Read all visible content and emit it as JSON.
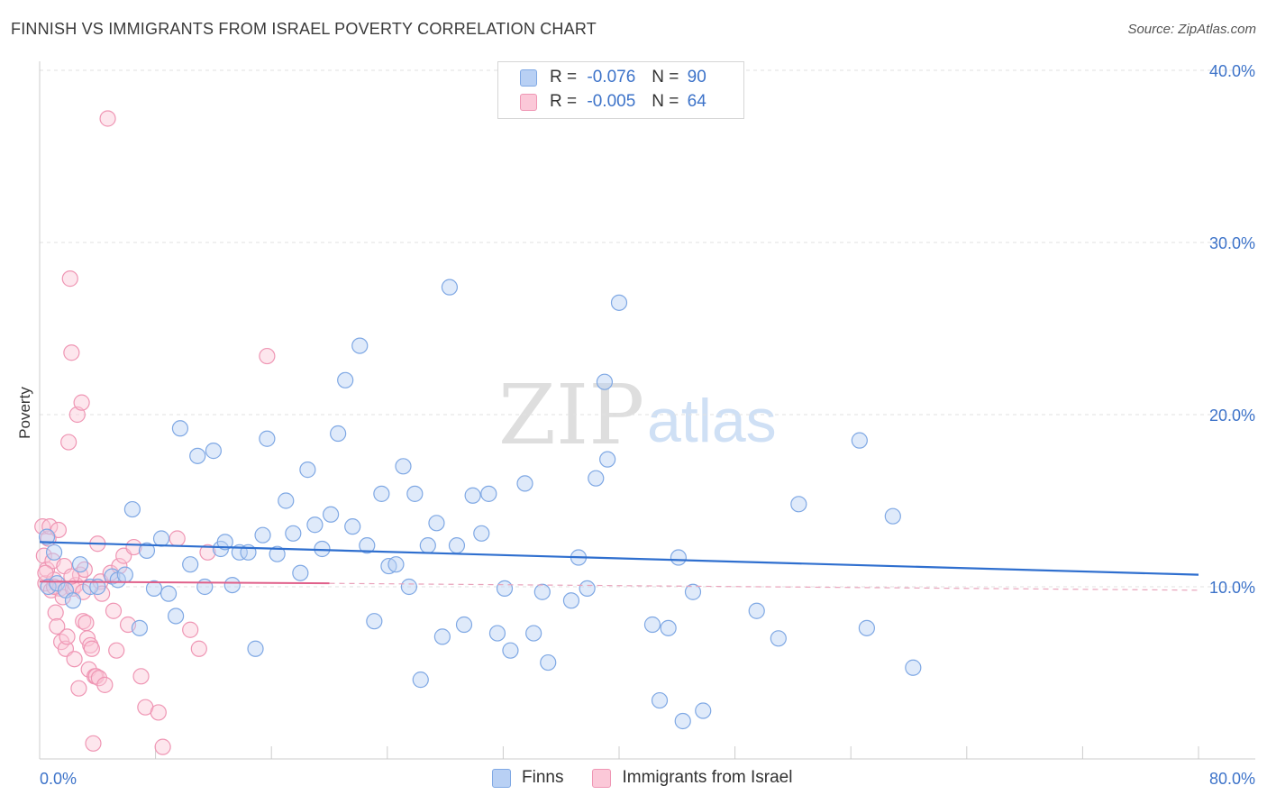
{
  "header": {
    "title": "FINNISH VS IMMIGRANTS FROM ISRAEL POVERTY CORRELATION CHART",
    "source": "Source: ZipAtlas.com"
  },
  "watermark": {
    "zip": "ZIP",
    "atlas": "atlas"
  },
  "legend_top": {
    "finns": {
      "r_label": "R =",
      "r_value": "-0.076",
      "n_label": "N =",
      "n_value": "90"
    },
    "israel": {
      "r_label": "R =",
      "r_value": "-0.005",
      "n_label": "N =",
      "n_value": "64"
    }
  },
  "legend_bottom": {
    "finns": "Finns",
    "israel": "Immigrants from Israel"
  },
  "colors": {
    "finns": "#7fa8e4",
    "finns_line": "#2f6fcf",
    "israel": "#ef96b4",
    "israel_line": "#e0608a",
    "tick_label": "#3d73c9"
  },
  "chart_data": {
    "type": "scatter",
    "title": "FINNISH VS IMMIGRANTS FROM ISRAEL POVERTY CORRELATION CHART",
    "xlabel": "",
    "ylabel": "Poverty",
    "xlim": [
      0,
      80
    ],
    "ylim": [
      0,
      40
    ],
    "x_tick_labels": [
      "0.0%",
      "80.0%"
    ],
    "y_ticks": [
      10,
      20,
      30,
      40
    ],
    "y_tick_labels": [
      "10.0%",
      "20.0%",
      "30.0%",
      "40.0%"
    ],
    "grid": "horizontal dashed",
    "legend": "top-center",
    "series": [
      {
        "name": "Finns",
        "color": "#7fa8e4",
        "trend": {
          "x": [
            0,
            80
          ],
          "y": [
            12.6,
            10.7
          ]
        },
        "points": [
          [
            0.5,
            12.9
          ],
          [
            0.6,
            10.0
          ],
          [
            1.0,
            12.0
          ],
          [
            1.2,
            10.2
          ],
          [
            1.8,
            9.8
          ],
          [
            2.3,
            9.2
          ],
          [
            2.8,
            11.3
          ],
          [
            3.5,
            10.0
          ],
          [
            4.0,
            10.0
          ],
          [
            5.0,
            10.6
          ],
          [
            5.4,
            10.4
          ],
          [
            5.9,
            10.7
          ],
          [
            6.4,
            14.5
          ],
          [
            6.9,
            7.6
          ],
          [
            7.4,
            12.1
          ],
          [
            7.9,
            9.9
          ],
          [
            8.4,
            12.8
          ],
          [
            8.9,
            9.6
          ],
          [
            9.4,
            8.3
          ],
          [
            9.7,
            19.2
          ],
          [
            10.4,
            11.3
          ],
          [
            10.9,
            17.6
          ],
          [
            11.4,
            10.0
          ],
          [
            12.0,
            17.9
          ],
          [
            12.5,
            12.2
          ],
          [
            12.8,
            12.6
          ],
          [
            13.3,
            10.1
          ],
          [
            13.8,
            12.0
          ],
          [
            14.4,
            12.0
          ],
          [
            14.9,
            6.4
          ],
          [
            15.4,
            13.0
          ],
          [
            15.7,
            18.6
          ],
          [
            16.4,
            11.9
          ],
          [
            17.0,
            15.0
          ],
          [
            17.5,
            13.1
          ],
          [
            18.0,
            10.8
          ],
          [
            18.5,
            16.8
          ],
          [
            19.0,
            13.6
          ],
          [
            19.5,
            12.2
          ],
          [
            20.1,
            14.2
          ],
          [
            20.6,
            18.9
          ],
          [
            21.1,
            22.0
          ],
          [
            21.6,
            13.5
          ],
          [
            22.1,
            24.0
          ],
          [
            22.6,
            12.4
          ],
          [
            23.1,
            8.0
          ],
          [
            23.6,
            15.4
          ],
          [
            24.1,
            11.2
          ],
          [
            24.6,
            11.3
          ],
          [
            25.1,
            17.0
          ],
          [
            25.5,
            10.0
          ],
          [
            25.9,
            15.4
          ],
          [
            26.3,
            4.6
          ],
          [
            26.8,
            12.4
          ],
          [
            27.4,
            13.7
          ],
          [
            27.8,
            7.1
          ],
          [
            28.3,
            27.4
          ],
          [
            28.8,
            12.4
          ],
          [
            29.3,
            7.8
          ],
          [
            29.9,
            15.3
          ],
          [
            30.5,
            13.1
          ],
          [
            31.0,
            15.4
          ],
          [
            31.6,
            7.3
          ],
          [
            32.1,
            9.9
          ],
          [
            32.5,
            6.3
          ],
          [
            33.5,
            16.0
          ],
          [
            34.1,
            7.3
          ],
          [
            34.7,
            9.7
          ],
          [
            35.1,
            5.6
          ],
          [
            36.7,
            9.2
          ],
          [
            37.2,
            11.7
          ],
          [
            37.8,
            9.9
          ],
          [
            38.4,
            16.3
          ],
          [
            39.0,
            21.9
          ],
          [
            39.2,
            17.4
          ],
          [
            40.0,
            26.5
          ],
          [
            42.3,
            7.8
          ],
          [
            42.8,
            3.4
          ],
          [
            43.4,
            7.6
          ],
          [
            44.1,
            11.7
          ],
          [
            44.4,
            2.2
          ],
          [
            45.1,
            9.7
          ],
          [
            45.8,
            2.8
          ],
          [
            49.5,
            8.6
          ],
          [
            51.0,
            7.0
          ],
          [
            52.4,
            14.8
          ],
          [
            56.6,
            18.5
          ],
          [
            57.1,
            7.6
          ],
          [
            58.9,
            14.1
          ],
          [
            60.3,
            5.3
          ]
        ]
      },
      {
        "name": "Immigrants from Israel",
        "color": "#ef96b4",
        "trend": {
          "x": [
            0,
            20
          ],
          "y": [
            10.3,
            10.2
          ]
        },
        "trend_extension": {
          "x": [
            20,
            80
          ],
          "y": [
            10.2,
            9.8
          ]
        },
        "points": [
          [
            0.2,
            13.5
          ],
          [
            0.3,
            11.8
          ],
          [
            0.4,
            10.2
          ],
          [
            0.5,
            11.0
          ],
          [
            0.6,
            12.8
          ],
          [
            0.7,
            13.5
          ],
          [
            0.8,
            9.8
          ],
          [
            0.9,
            11.5
          ],
          [
            1.0,
            10.4
          ],
          [
            1.1,
            8.5
          ],
          [
            1.2,
            7.7
          ],
          [
            1.3,
            13.3
          ],
          [
            1.4,
            9.9
          ],
          [
            1.5,
            6.8
          ],
          [
            1.6,
            9.4
          ],
          [
            1.7,
            11.2
          ],
          [
            1.8,
            6.4
          ],
          [
            1.9,
            7.1
          ],
          [
            2.0,
            18.4
          ],
          [
            2.1,
            27.9
          ],
          [
            2.2,
            23.6
          ],
          [
            2.3,
            9.9
          ],
          [
            2.4,
            5.8
          ],
          [
            2.5,
            10.1
          ],
          [
            2.6,
            20.0
          ],
          [
            2.7,
            4.1
          ],
          [
            2.8,
            10.7
          ],
          [
            2.9,
            20.7
          ],
          [
            3.0,
            8.0
          ],
          [
            3.1,
            11.0
          ],
          [
            3.2,
            7.9
          ],
          [
            3.3,
            7.0
          ],
          [
            3.4,
            5.2
          ],
          [
            3.5,
            6.6
          ],
          [
            3.6,
            6.4
          ],
          [
            3.7,
            0.9
          ],
          [
            3.8,
            4.8
          ],
          [
            3.9,
            4.8
          ],
          [
            4.0,
            12.5
          ],
          [
            4.1,
            4.7
          ],
          [
            4.2,
            10.3
          ],
          [
            4.3,
            9.6
          ],
          [
            4.5,
            4.3
          ],
          [
            4.7,
            37.2
          ],
          [
            4.9,
            10.8
          ],
          [
            5.1,
            8.6
          ],
          [
            5.3,
            6.3
          ],
          [
            5.5,
            11.2
          ],
          [
            5.8,
            11.8
          ],
          [
            6.1,
            7.8
          ],
          [
            6.5,
            12.3
          ],
          [
            7.0,
            4.8
          ],
          [
            7.3,
            3.0
          ],
          [
            8.2,
            2.7
          ],
          [
            8.5,
            0.7
          ],
          [
            9.5,
            12.8
          ],
          [
            10.4,
            7.5
          ],
          [
            11.0,
            6.4
          ],
          [
            11.6,
            12.0
          ],
          [
            15.7,
            23.4
          ],
          [
            0.4,
            10.8
          ],
          [
            1.0,
            10.0
          ],
          [
            2.2,
            10.6
          ],
          [
            3.0,
            9.7
          ]
        ]
      }
    ]
  }
}
